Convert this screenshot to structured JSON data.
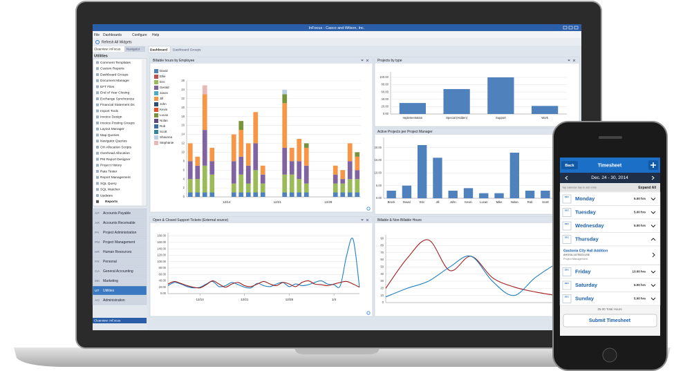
{
  "window": {
    "title": "InFocus - Casco and Wilson, Inc.",
    "menu": [
      "File",
      "Dashboards",
      "Configure",
      "Help"
    ],
    "toolbar": "Refresh All Widgets"
  },
  "sidebar": {
    "tabs": [
      "Clearview: InFocus",
      "Navigator"
    ],
    "section": "Utilities",
    "items": [
      "Comment Templates",
      "Custom Reports",
      "Dashboard Groups",
      "Document Manager",
      "EFT Files",
      "End of Year Closing",
      "Exchange Synchroniza",
      "Financial Statement Ds",
      "Import Tools",
      "Invoice Design",
      "Invoice Posting Groups",
      "Layout Manager",
      "Map Queries",
      "Navigator Queries",
      "OH Allocation Scripts",
      "Overhead Allocation",
      "PM Report Designer",
      "Project History",
      "Rate Tester",
      "Report Management",
      "SQL Query",
      "SQL Watcher",
      "Updates",
      "Reports"
    ],
    "modules": [
      {
        "code": "AP",
        "label": "Accounts Payable"
      },
      {
        "code": "AR",
        "label": "Accounts Receivable"
      },
      {
        "code": "PA",
        "label": "Project Administration"
      },
      {
        "code": "PM",
        "label": "Project Management"
      },
      {
        "code": "HR",
        "label": "Human Resources"
      },
      {
        "code": "PR",
        "label": "Personal"
      },
      {
        "code": "GA",
        "label": "General Accounting"
      },
      {
        "code": "MK",
        "label": "Marketing"
      },
      {
        "code": "UT",
        "label": "Utilities"
      },
      {
        "code": "AD",
        "label": "Administration"
      }
    ],
    "footer": "Clearview: InFocus"
  },
  "dashboard": {
    "tabs": [
      "Dashboard",
      "Dashboard Groups"
    ]
  },
  "charts": [
    {
      "type": "stacked-bar",
      "title": "Billable hours by Employee",
      "categories": [
        null,
        null,
        null,
        null,
        null,
        "12/14",
        null,
        null,
        null,
        null,
        null,
        null,
        "12/21",
        null,
        null,
        null,
        null,
        null,
        null,
        "12/28",
        null,
        null,
        null,
        null
      ],
      "series": [
        {
          "name": "David",
          "color": "#4f81bd",
          "values": [
            1,
            1,
            1,
            1,
            0,
            0,
            1,
            1,
            1,
            1,
            1,
            0,
            0,
            1,
            1,
            1,
            1,
            0,
            0,
            0,
            1,
            1,
            1,
            1
          ]
        },
        {
          "name": "Ellie",
          "color": "#c0504d",
          "values": [
            0,
            0,
            0,
            0,
            0,
            0,
            0,
            0,
            0,
            0,
            0,
            0,
            0,
            0,
            0,
            0,
            0,
            0,
            0,
            0,
            0,
            0,
            0,
            0
          ]
        },
        {
          "name": "Eric",
          "color": "#9bbb59",
          "values": [
            3,
            3,
            6,
            4,
            0,
            0,
            2,
            4,
            2,
            5,
            2,
            0,
            0,
            4,
            4,
            3,
            2,
            0,
            0,
            0,
            2,
            2,
            3,
            3
          ]
        },
        {
          "name": "Gerald",
          "color": "#8064a2",
          "values": [
            4,
            3,
            8,
            3,
            0,
            0,
            5,
            4,
            4,
            6,
            2,
            0,
            0,
            6,
            3,
            4,
            4,
            0,
            0,
            0,
            2,
            1,
            4,
            2
          ]
        },
        {
          "name": "Jason",
          "color": "#4bacc6",
          "values": [
            0,
            0,
            0,
            0,
            0,
            0,
            0,
            0,
            0,
            0,
            0,
            0,
            0,
            0,
            0,
            0,
            0,
            0,
            0,
            0,
            0,
            0,
            0,
            0
          ]
        },
        {
          "name": "Jill",
          "color": "#f79646",
          "values": [
            4,
            2,
            8,
            3,
            0,
            0,
            6,
            6,
            5,
            7,
            2,
            0,
            0,
            10,
            3,
            5,
            4,
            0,
            0,
            0,
            2,
            2,
            4,
            3
          ]
        },
        {
          "name": "John",
          "color": "#2c4d75",
          "values": [
            0,
            0,
            0,
            0,
            0,
            0,
            0,
            0,
            0,
            0,
            0,
            0,
            0,
            0,
            0,
            0,
            0,
            0,
            0,
            0,
            0,
            0,
            0,
            0
          ]
        },
        {
          "name": "Kevin",
          "color": "#e8502a",
          "values": [
            0,
            0,
            0,
            0,
            0,
            0,
            0,
            0,
            0,
            0,
            0,
            0,
            0,
            0,
            0,
            0,
            0,
            0,
            0,
            0,
            0,
            0,
            0,
            0
          ]
        },
        {
          "name": "Lucas",
          "color": "#77933c",
          "values": [
            0,
            0,
            0,
            0,
            0,
            0,
            0,
            2,
            0,
            0,
            0,
            0,
            0,
            2,
            0,
            0,
            1,
            0,
            0,
            0,
            0,
            0,
            0,
            1
          ]
        },
        {
          "name": "Nolan",
          "color": "#5f4a86",
          "values": [
            0,
            0,
            0,
            0,
            0,
            0,
            0,
            0,
            0,
            0,
            0,
            0,
            0,
            0,
            0,
            0,
            0,
            0,
            0,
            0,
            0,
            0,
            0,
            0
          ]
        },
        {
          "name": "Rob",
          "color": "#3a6ea5",
          "values": [
            0,
            0,
            0,
            0,
            0,
            0,
            0,
            0,
            0,
            0,
            0,
            0,
            0,
            0,
            0,
            0,
            0,
            0,
            0,
            0,
            0,
            0,
            0,
            0
          ]
        },
        {
          "name": "Scott",
          "color": "#31859c",
          "values": [
            0,
            0,
            0,
            0,
            0,
            0,
            0,
            0,
            0,
            0,
            0,
            0,
            0,
            0,
            0,
            0,
            0,
            0,
            0,
            0,
            0,
            0,
            0,
            0
          ]
        },
        {
          "name": "Shaunna",
          "color": "#b9cde5",
          "values": [
            0,
            0,
            0,
            0,
            0,
            0,
            0,
            0,
            0,
            0,
            0,
            0,
            0,
            1,
            0,
            0,
            0,
            0,
            0,
            0,
            0,
            0,
            0,
            0
          ]
        },
        {
          "name": "Stephanie",
          "color": "#e6b9b8",
          "values": [
            0,
            0,
            2,
            0,
            0,
            0,
            0,
            0,
            0,
            0,
            0,
            0,
            0,
            0,
            0,
            0,
            0,
            0,
            0,
            0,
            0,
            0,
            0,
            0
          ]
        }
      ],
      "ylim": [
        0,
        26
      ],
      "yticks": [
        0,
        2,
        4,
        6,
        8,
        10,
        12,
        14,
        16,
        18,
        20,
        22,
        24,
        26
      ],
      "grid": true
    },
    {
      "type": "bar",
      "title": "Projects by type",
      "categories": [
        "Implementation",
        "Special (Hidden)",
        "Support",
        "Work"
      ],
      "values": [
        30,
        68,
        100,
        22
      ],
      "color": "#4f81bd",
      "ylim": [
        0,
        115
      ],
      "yticks": [
        {
          "value": 0,
          "label": "0.00"
        },
        {
          "value": 20,
          "label": "20.00"
        },
        {
          "value": 40,
          "label": "40.00"
        },
        {
          "value": 60,
          "label": "60.00"
        },
        {
          "value": 80,
          "label": "80.00"
        },
        {
          "value": 100,
          "label": "100.00"
        }
      ],
      "grid": true
    },
    {
      "type": "bar",
      "title": "Active Projects per Project Manager",
      "categories": [
        "Brock",
        "David",
        "Eric",
        "Jill",
        "John",
        "Kevin",
        "Lucas",
        "Mike",
        "Nolan",
        "Rob",
        "Scott"
      ],
      "values": [
        3,
        5,
        21,
        16,
        3,
        4,
        2,
        2,
        18,
        3,
        3
      ],
      "color": "#4f81bd",
      "ylim": [
        0,
        24
      ],
      "yticks": [
        {
          "value": 0,
          "label": "0.00"
        },
        {
          "value": 5,
          "label": "5.00"
        },
        {
          "value": 10,
          "label": "10.00"
        },
        {
          "value": 15,
          "label": "15.00"
        },
        {
          "value": 20,
          "label": "20.00"
        }
      ],
      "grid": true
    },
    {
      "type": "line",
      "title": "Open & Closed Support Tickets (External source)",
      "categories": [
        null,
        null,
        null,
        null,
        null,
        "12/14",
        null,
        null,
        null,
        null,
        null,
        null,
        "12/21",
        null,
        null,
        null,
        null,
        null,
        null,
        "12/28",
        null,
        null,
        null,
        null,
        null,
        null,
        "1/4",
        null,
        null,
        null,
        null
      ],
      "series": [
        {
          "color": "#1f7fc0",
          "values": [
            25,
            35,
            30,
            22,
            18,
            20,
            30,
            38,
            22,
            25,
            35,
            28,
            20,
            18,
            32,
            25,
            22,
            30,
            35,
            22,
            30,
            25,
            28,
            35,
            40,
            30,
            28,
            25,
            120,
            170,
            20
          ]
        },
        {
          "color": "#9c1c1c",
          "values": [
            30,
            38,
            32,
            25,
            20,
            18,
            28,
            40,
            30,
            20,
            30,
            35,
            25,
            22,
            30,
            38,
            30,
            25,
            35,
            30,
            22,
            35,
            40,
            30,
            28,
            25,
            30,
            35,
            38,
            30,
            20
          ]
        }
      ],
      "ylim": [
        0,
        190
      ],
      "yticks": [
        {
          "value": 0,
          "label": "0.00"
        },
        {
          "value": 20,
          "label": "20.00"
        },
        {
          "value": 40,
          "label": "40.00"
        },
        {
          "value": 60,
          "label": "60.00"
        },
        {
          "value": 80,
          "label": "80.00"
        },
        {
          "value": 100,
          "label": "100.00"
        },
        {
          "value": 120,
          "label": "120.00"
        },
        {
          "value": 140,
          "label": "140.00"
        },
        {
          "value": 160,
          "label": "160.00"
        },
        {
          "value": 180,
          "label": "180.00"
        }
      ],
      "grid": true
    },
    {
      "type": "line",
      "title": "Billable & Non-Billable Hours",
      "categories": [
        null,
        null,
        null,
        null,
        null,
        null,
        null,
        null,
        null
      ],
      "series": [
        {
          "color": "#a31c1c",
          "values": [
            20,
            62,
            88,
            45,
            65,
            35,
            22,
            15,
            10
          ]
        },
        {
          "color": "#1f7fc0",
          "values": [
            8,
            20,
            30,
            50,
            65,
            30,
            10,
            35,
            55
          ]
        }
      ],
      "ylim": [
        0,
        95
      ],
      "yticks": [
        0,
        10,
        20,
        30,
        40,
        50,
        60,
        70,
        80,
        90
      ],
      "grid": true
    }
  ],
  "phone": {
    "back": "Back",
    "title": "Timesheet",
    "range": "Dec. 24 - 30, 2014",
    "hint": "Tap calendar day to add entry",
    "expand": "Expand All",
    "days": [
      {
        "month": "DEC",
        "name": "Monday",
        "hours": "5.00 hrs"
      },
      {
        "month": "DEC",
        "name": "Tuesday",
        "hours": "5.00 hrs"
      },
      {
        "month": "DEC",
        "name": "Wednesday",
        "hours": "5.00 hrs"
      },
      {
        "month": "DEC",
        "name": "Thursday",
        "entries": [
          {
            "title": "Gastonia City Hall Addition",
            "code": "AHOSA-1675023.USE",
            "task": "Project Management"
          }
        ]
      },
      {
        "month": "DEC",
        "name": "Friday",
        "hours": "13.00 hrs"
      },
      {
        "month": "DEC",
        "name": "Saturday",
        "hours": "5.00 hrs"
      },
      {
        "month": "DEC",
        "name": "Sunday",
        "hours": "5.00 hrs"
      }
    ],
    "total": "25.00 Total Hours",
    "submit": "Submit Timesheet"
  }
}
